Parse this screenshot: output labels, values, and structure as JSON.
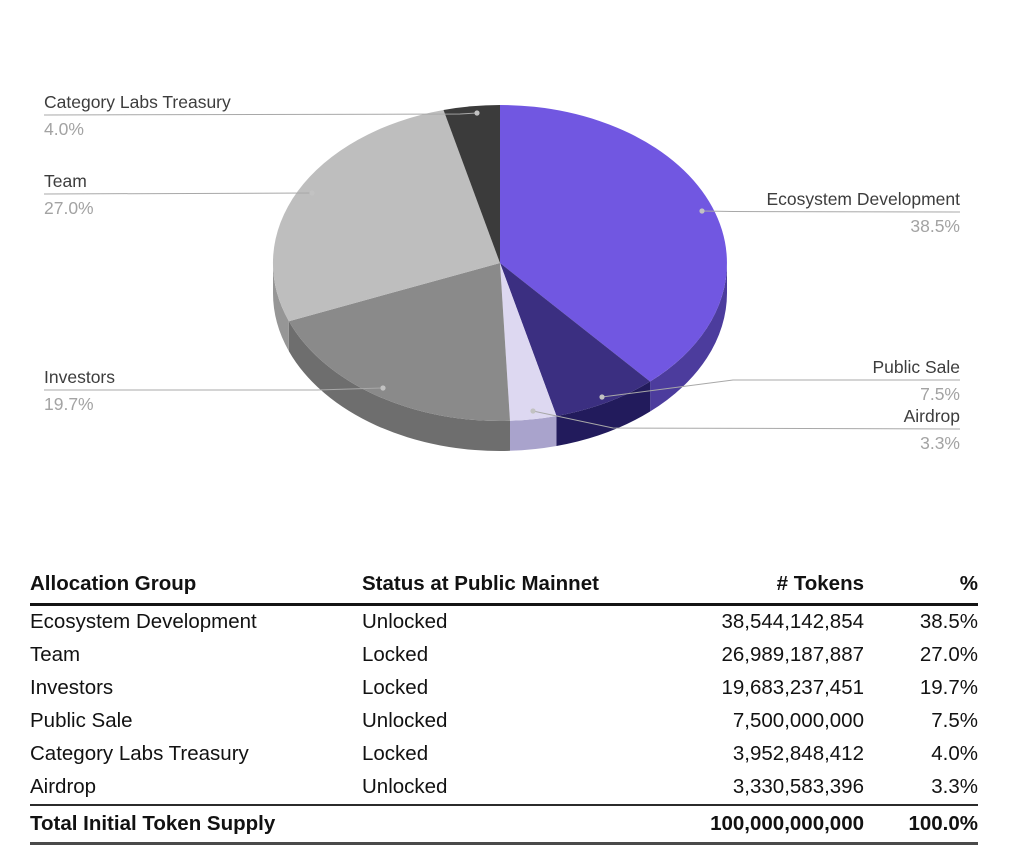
{
  "chart_data": {
    "type": "pie",
    "style": "3d",
    "title": "",
    "legend_position": "outside-callouts",
    "segments": [
      {
        "label": "Ecosystem Development",
        "pct": 38.5,
        "pct_label": "38.5%",
        "color": "#7157E1",
        "side_color": "#4C3C9D"
      },
      {
        "label": "Public Sale",
        "pct": 7.5,
        "pct_label": "7.5%",
        "color": "#3B2F81",
        "side_color": "#221B5C"
      },
      {
        "label": "Airdrop",
        "pct": 3.3,
        "pct_label": "3.3%",
        "color": "#DDD8F1",
        "side_color": "#A9A3CC"
      },
      {
        "label": "Investors",
        "pct": 19.7,
        "pct_label": "19.7%",
        "color": "#8A8A8A",
        "side_color": "#6E6E6E"
      },
      {
        "label": "Team",
        "pct": 27.0,
        "pct_label": "27.0%",
        "color": "#BEBEBE",
        "side_color": "#969696"
      },
      {
        "label": "Category Labs Treasury",
        "pct": 4.0,
        "pct_label": "4.0%",
        "color": "#3B3B3B",
        "side_color": "#2C2C2C"
      }
    ],
    "leader_line_color": "#a8a8a8",
    "leader_dot_color": "#c2c2c2"
  },
  "table": {
    "headers": [
      "Allocation Group",
      "Status at Public Mainnet",
      "# Tokens",
      "%"
    ],
    "rows": [
      {
        "group": "Ecosystem Development",
        "status": "Unlocked",
        "tokens": "38,544,142,854",
        "pct": "38.5%"
      },
      {
        "group": "Team",
        "status": "Locked",
        "tokens": "26,989,187,887",
        "pct": "27.0%"
      },
      {
        "group": "Investors",
        "status": "Locked",
        "tokens": "19,683,237,451",
        "pct": "19.7%"
      },
      {
        "group": "Public Sale",
        "status": "Unlocked",
        "tokens": "7,500,000,000",
        "pct": "7.5%"
      },
      {
        "group": "Category Labs Treasury",
        "status": "Locked",
        "tokens": "3,952,848,412",
        "pct": "4.0%"
      },
      {
        "group": "Airdrop",
        "status": "Unlocked",
        "tokens": "3,330,583,396",
        "pct": "3.3%"
      }
    ],
    "total": {
      "group": "Total Initial Token Supply",
      "status": "",
      "tokens": "100,000,000,000",
      "pct": "100.0%"
    }
  }
}
